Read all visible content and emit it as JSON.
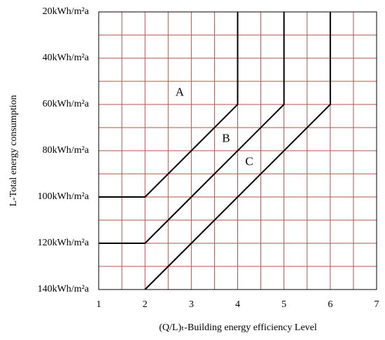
{
  "chart_data": {
    "type": "line",
    "x_label": "(Q/L)ₜ-Building energy efficiency Level",
    "y_label": "L-Total energy consumption",
    "xlim": [
      1,
      7
    ],
    "ylim": [
      140,
      20
    ],
    "xticks": [
      1,
      2,
      3,
      4,
      5,
      6,
      7
    ],
    "yticks": [
      {
        "value": 20,
        "label": "20kWh/m²a"
      },
      {
        "value": 40,
        "label": "40kWh/m²a"
      },
      {
        "value": 60,
        "label": "60kWh/m²a"
      },
      {
        "value": 80,
        "label": "80kWh/m²a"
      },
      {
        "value": 100,
        "label": "100kWh/m²a"
      },
      {
        "value": 120,
        "label": "120kWh/m²a"
      },
      {
        "value": 140,
        "label": "140kWh/m²a"
      }
    ],
    "xminorticks": [
      1.5,
      2.5,
      3.5,
      4.5,
      5.5,
      6.5
    ],
    "yminorticks": [
      30,
      50,
      70,
      90,
      110,
      130
    ],
    "grid": true,
    "grid_color": "#b5524a",
    "series": [
      {
        "color": "#000000",
        "x": [
          1,
          2,
          4,
          4
        ],
        "values": [
          100,
          100,
          60,
          20
        ]
      },
      {
        "color": "#000000",
        "x": [
          1,
          2,
          5,
          5
        ],
        "values": [
          120,
          120,
          60,
          20
        ]
      },
      {
        "color": "#000000",
        "x": [
          2,
          6,
          6
        ],
        "values": [
          140,
          60,
          20
        ]
      }
    ],
    "annotations": [
      {
        "text": "A",
        "x": 2.75,
        "y": 55
      },
      {
        "text": "B",
        "x": 3.75,
        "y": 75
      },
      {
        "text": "C",
        "x": 4.25,
        "y": 85
      }
    ]
  }
}
